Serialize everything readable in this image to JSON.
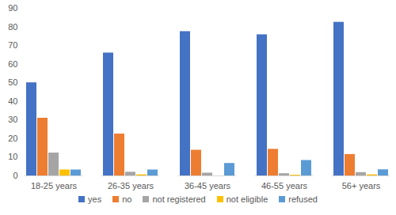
{
  "chart_data": {
    "type": "bar",
    "categories": [
      "18-25 years",
      "26-35 years",
      "36-45 years",
      "46-55 years",
      "56+ years"
    ],
    "series": [
      {
        "name": "yes",
        "color": "#4472c4",
        "values": [
          50,
          66,
          77.5,
          75.8,
          82.5
        ]
      },
      {
        "name": "no",
        "color": "#ed7d31",
        "values": [
          31,
          22.5,
          13.8,
          14.3,
          11.5
        ]
      },
      {
        "name": "not registered",
        "color": "#a5a5a5",
        "values": [
          12.3,
          2,
          1.5,
          1.2,
          1.8
        ]
      },
      {
        "name": "not eligible",
        "color": "#ffc000",
        "values": [
          3.2,
          0.6,
          0,
          0.4,
          0.6
        ]
      },
      {
        "name": "refused",
        "color": "#5b9bd5",
        "values": [
          3.2,
          3.2,
          6.7,
          8.3,
          3.3
        ]
      }
    ],
    "ylim": [
      0,
      90
    ],
    "yticks": [
      0,
      10,
      20,
      30,
      40,
      50,
      60,
      70,
      80,
      90
    ],
    "grid": false,
    "legend": "bottom"
  }
}
